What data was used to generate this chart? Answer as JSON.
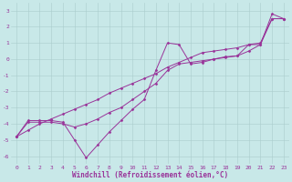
{
  "xlabel": "Windchill (Refroidissement éolien,°C)",
  "background_color": "#c8e8e8",
  "grid_color": "#aacccc",
  "line_color": "#993399",
  "x_all": [
    0,
    1,
    2,
    3,
    4,
    5,
    6,
    7,
    8,
    9,
    10,
    11,
    12,
    13,
    14,
    15,
    16,
    17,
    18,
    19,
    20,
    21,
    22,
    23
  ],
  "y_jagged": [
    -4.8,
    -3.8,
    -3.8,
    -3.8,
    -3.9,
    -5.0,
    -6.1,
    -5.3,
    -4.5,
    -3.8,
    -3.1,
    -2.5,
    -0.7,
    1.0,
    0.9,
    -0.3,
    -0.2,
    0.0,
    0.1,
    0.2,
    0.9,
    0.9,
    2.8,
    2.5
  ],
  "y_smooth": [
    -4.8,
    -3.9,
    -3.9,
    -3.9,
    -4.0,
    -4.2,
    -4.0,
    -3.7,
    -3.3,
    -3.0,
    -2.5,
    -2.0,
    -1.5,
    -0.7,
    -0.3,
    -0.2,
    -0.1,
    0.0,
    0.15,
    0.2,
    0.5,
    0.9,
    2.5,
    2.5
  ],
  "y_linear": [
    -4.8,
    -4.4,
    -4.0,
    -3.7,
    -3.4,
    -3.1,
    -2.8,
    -2.5,
    -2.1,
    -1.8,
    -1.5,
    -1.2,
    -0.9,
    -0.5,
    -0.2,
    0.1,
    0.4,
    0.5,
    0.6,
    0.7,
    0.9,
    1.0,
    2.5,
    2.5
  ],
  "xlim": [
    -0.5,
    23.5
  ],
  "ylim": [
    -6.5,
    3.5
  ],
  "yticks": [
    -6,
    -5,
    -4,
    -3,
    -2,
    -1,
    0,
    1,
    2,
    3
  ],
  "xticks": [
    0,
    1,
    2,
    3,
    4,
    5,
    6,
    7,
    8,
    9,
    10,
    11,
    12,
    13,
    14,
    15,
    16,
    17,
    18,
    19,
    20,
    21,
    22,
    23
  ],
  "tick_fontsize": 4.5,
  "xlabel_fontsize": 5.5,
  "marker": "D",
  "marker_size": 1.5,
  "linewidth": 0.7
}
